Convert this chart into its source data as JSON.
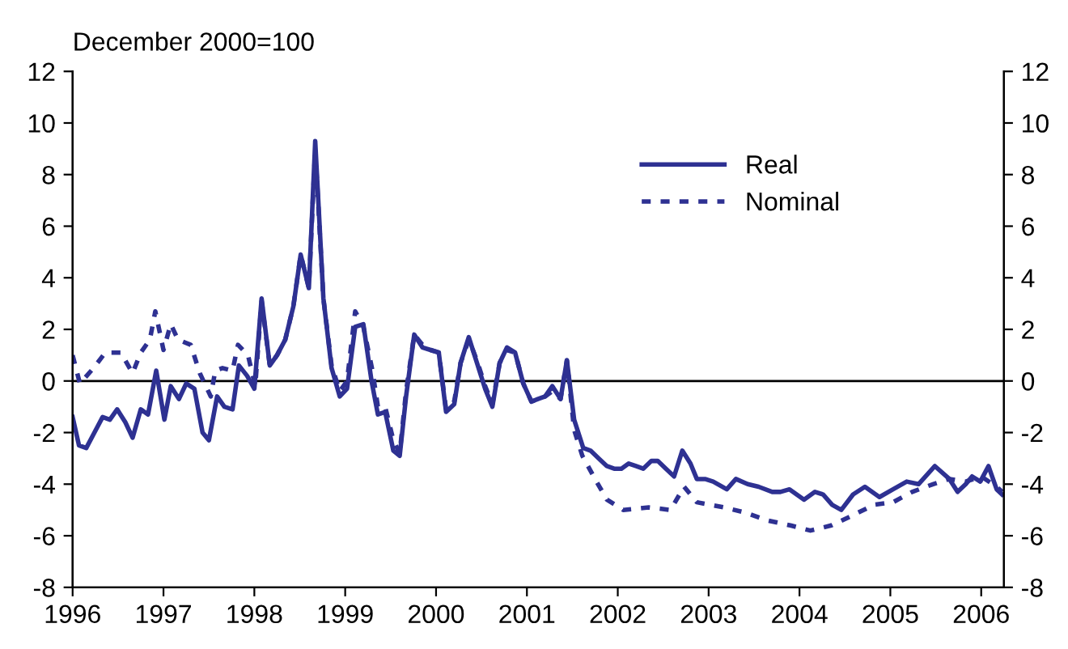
{
  "chart_data": {
    "type": "line",
    "ylabel": "December 2000=100",
    "xlim": [
      1996,
      2006.25
    ],
    "xticks": [
      1996,
      1997,
      1998,
      1999,
      2000,
      2001,
      2002,
      2003,
      2004,
      2005,
      2006
    ],
    "ylim": [
      -8,
      12
    ],
    "yticks": [
      -8,
      -6,
      -4,
      -2,
      0,
      2,
      4,
      6,
      8,
      10,
      12
    ],
    "y2lim": [
      -8,
      12
    ],
    "y2ticks": [
      -8,
      -6,
      -4,
      -2,
      0,
      2,
      4,
      6,
      8,
      10,
      12
    ],
    "ref_lines": [
      {
        "axis": "y",
        "value": 0,
        "color": "#000000",
        "line_style": "solid"
      }
    ],
    "grid": false,
    "legend": "top right",
    "series": [
      {
        "name": "Real",
        "color": "#2e3192",
        "line_style": "solid",
        "x": [
          1996.0,
          1996.07,
          1996.15,
          1996.24,
          1996.33,
          1996.41,
          1996.49,
          1996.58,
          1996.66,
          1996.75,
          1996.83,
          1996.92,
          1997.01,
          1997.08,
          1997.17,
          1997.25,
          1997.34,
          1997.43,
          1997.5,
          1997.59,
          1997.67,
          1997.76,
          1997.83,
          1997.92,
          1998.0,
          1998.08,
          1998.17,
          1998.25,
          1998.34,
          1998.43,
          1998.51,
          1998.6,
          1998.67,
          1998.76,
          1998.85,
          1998.94,
          1999.02,
          1999.11,
          1999.2,
          1999.29,
          1999.36,
          1999.44,
          1999.53,
          1999.6,
          1999.67,
          1999.76,
          1999.85,
          1999.94,
          2000.03,
          2000.11,
          2000.2,
          2000.27,
          2000.36,
          2000.45,
          2000.54,
          2000.62,
          2000.7,
          2000.78,
          2000.87,
          2000.96,
          2001.05,
          2001.12,
          2001.2,
          2001.28,
          2001.37,
          2001.44,
          2001.52,
          2001.62,
          2001.7,
          2001.79,
          2001.88,
          2001.96,
          2002.04,
          2002.12,
          2002.2,
          2002.28,
          2002.37,
          2002.44,
          2002.53,
          2002.62,
          2002.71,
          2002.8,
          2002.87,
          2002.96,
          2003.05,
          2003.2,
          2003.3,
          2003.43,
          2003.55,
          2003.7,
          2003.79,
          2003.89,
          2004.05,
          2004.17,
          2004.26,
          2004.36,
          2004.46,
          2004.59,
          2004.72,
          2004.88,
          2005.03,
          2005.18,
          2005.31,
          2005.49,
          2005.65,
          2005.74,
          2005.83,
          2005.9,
          2005.99,
          2006.08,
          2006.17,
          2006.23
        ],
        "values": [
          -1.4,
          -2.5,
          -2.6,
          -2.0,
          -1.4,
          -1.5,
          -1.1,
          -1.6,
          -2.2,
          -1.1,
          -1.3,
          0.4,
          -1.5,
          -0.2,
          -0.7,
          -0.1,
          -0.3,
          -2.0,
          -2.3,
          -0.6,
          -1.0,
          -1.1,
          0.6,
          0.2,
          -0.3,
          3.2,
          0.6,
          1.0,
          1.6,
          2.9,
          4.9,
          3.6,
          9.3,
          3.2,
          0.5,
          -0.6,
          -0.3,
          2.1,
          2.2,
          0.0,
          -1.3,
          -1.2,
          -2.7,
          -2.9,
          -0.6,
          1.8,
          1.3,
          1.2,
          1.1,
          -1.2,
          -0.9,
          0.7,
          1.7,
          0.7,
          -0.3,
          -1.0,
          0.7,
          1.3,
          1.1,
          -0.1,
          -0.8,
          -0.7,
          -0.6,
          -0.2,
          -0.7,
          0.8,
          -1.5,
          -2.6,
          -2.7,
          -3.0,
          -3.3,
          -3.4,
          -3.4,
          -3.2,
          -3.3,
          -3.4,
          -3.1,
          -3.1,
          -3.4,
          -3.7,
          -2.7,
          -3.2,
          -3.8,
          -3.8,
          -3.9,
          -4.2,
          -3.8,
          -4.0,
          -4.1,
          -4.3,
          -4.3,
          -4.2,
          -4.6,
          -4.3,
          -4.4,
          -4.8,
          -5.0,
          -4.4,
          -4.1,
          -4.5,
          -4.2,
          -3.9,
          -4.0,
          -3.3,
          -3.8,
          -4.3,
          -4.0,
          -3.7,
          -3.9,
          -3.3,
          -4.2,
          -4.4
        ]
      },
      {
        "name": "Nominal",
        "color": "#2e3192",
        "line_style": "dotted",
        "x": [
          1996.0,
          1996.08,
          1996.23,
          1996.36,
          1996.53,
          1996.66,
          1996.75,
          1996.85,
          1996.91,
          1997.0,
          1997.08,
          1997.16,
          1997.3,
          1997.4,
          1997.52,
          1997.57,
          1997.65,
          1997.76,
          1997.82,
          1997.93,
          1998.01,
          1998.08,
          1998.17,
          1998.25,
          1998.34,
          1998.43,
          1998.51,
          1998.6,
          1998.67,
          1998.76,
          1998.85,
          1998.94,
          1999.02,
          1999.11,
          1999.2,
          1999.3,
          1999.36,
          1999.44,
          1999.53,
          1999.6,
          1999.67,
          1999.76,
          1999.85,
          1999.94,
          2000.03,
          2000.11,
          2000.2,
          2000.27,
          2000.36,
          2000.45,
          2000.54,
          2000.62,
          2000.7,
          2000.78,
          2000.87,
          2000.96,
          2001.05,
          2001.12,
          2001.2,
          2001.28,
          2001.37,
          2001.44,
          2001.52,
          2001.61,
          2001.75,
          2001.88,
          2002.06,
          2002.34,
          2002.58,
          2002.73,
          2002.87,
          2003.17,
          2003.4,
          2003.64,
          2003.9,
          2004.12,
          2004.35,
          2004.59,
          2004.82,
          2005.03,
          2005.24,
          2005.47,
          2005.65,
          2005.83,
          2006.0,
          2006.17,
          2006.23
        ],
        "values": [
          1.0,
          -0.1,
          0.5,
          1.1,
          1.1,
          0.3,
          1.1,
          1.6,
          2.7,
          1.2,
          2.2,
          1.6,
          1.4,
          0.3,
          -0.6,
          0.4,
          0.5,
          0.4,
          1.4,
          1.0,
          -0.2,
          3.1,
          0.6,
          1.0,
          1.6,
          2.9,
          4.9,
          3.6,
          9.0,
          3.2,
          0.6,
          -0.4,
          0.0,
          2.7,
          2.1,
          0.4,
          -1.0,
          -1.0,
          -2.3,
          -2.8,
          -0.4,
          1.8,
          1.4,
          1.2,
          1.1,
          -1.1,
          -0.8,
          0.7,
          1.6,
          0.8,
          -0.2,
          -0.9,
          0.7,
          1.2,
          1.1,
          -0.1,
          -0.8,
          -0.7,
          -0.6,
          -0.4,
          -0.7,
          0.8,
          -1.9,
          -2.9,
          -3.8,
          -4.6,
          -5.0,
          -4.9,
          -5.0,
          -4.1,
          -4.7,
          -4.9,
          -5.1,
          -5.4,
          -5.6,
          -5.8,
          -5.6,
          -5.2,
          -4.8,
          -4.7,
          -4.3,
          -4.0,
          -3.8,
          -3.9,
          -3.7,
          -4.1,
          -4.3
        ]
      }
    ]
  }
}
